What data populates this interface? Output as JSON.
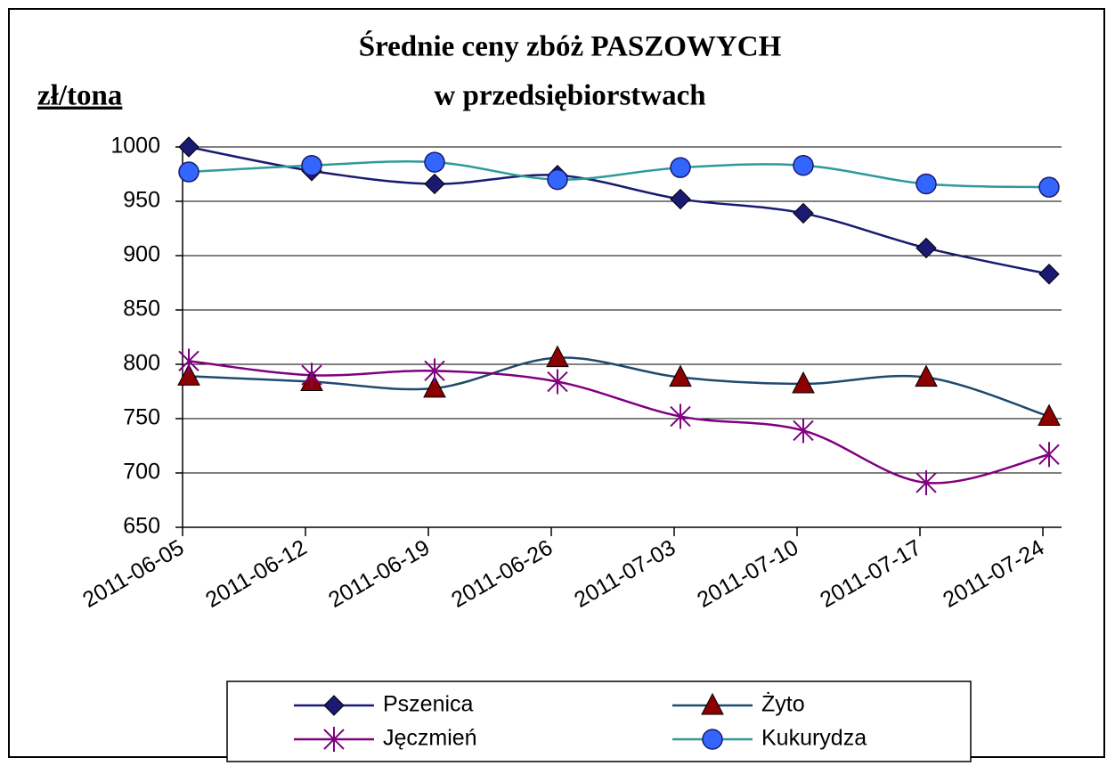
{
  "chart_data": {
    "type": "line",
    "title": [
      "Średnie ceny zbóż PASZOWYCH",
      "w przedsiębiorstwach"
    ],
    "y_label": "zł/tona",
    "categories": [
      "2011-06-05",
      "2011-06-12",
      "2011-06-19",
      "2011-06-26",
      "2011-07-03",
      "2011-07-10",
      "2011-07-17",
      "2011-07-24"
    ],
    "series": [
      {
        "name": "Pszenica",
        "color": "#1a1a72",
        "marker_color": "#1a1a72",
        "marker": "diamond",
        "values": [
          1000,
          978,
          966,
          974,
          952,
          939,
          907,
          883
        ]
      },
      {
        "name": "Żyto",
        "color": "#1f4a6e",
        "marker_color": "#8b0000",
        "marker": "triangle",
        "values": [
          789,
          784,
          778,
          806,
          788,
          782,
          788,
          752
        ]
      },
      {
        "name": "Jęczmień",
        "color": "#800080",
        "marker_color": "#800080",
        "marker": "star",
        "values": [
          803,
          790,
          794,
          784,
          752,
          739,
          691,
          717
        ]
      },
      {
        "name": "Kukurydza",
        "color": "#2e9a9a",
        "marker_color": "#3366ff",
        "marker": "circle",
        "values": [
          977,
          983,
          986,
          970,
          981,
          983,
          966,
          963
        ]
      }
    ],
    "ylim": [
      650,
      1000
    ],
    "yticks": [
      650,
      700,
      750,
      800,
      850,
      900,
      950,
      1000
    ],
    "grid": true,
    "smooth": true,
    "legend": "bottom"
  }
}
